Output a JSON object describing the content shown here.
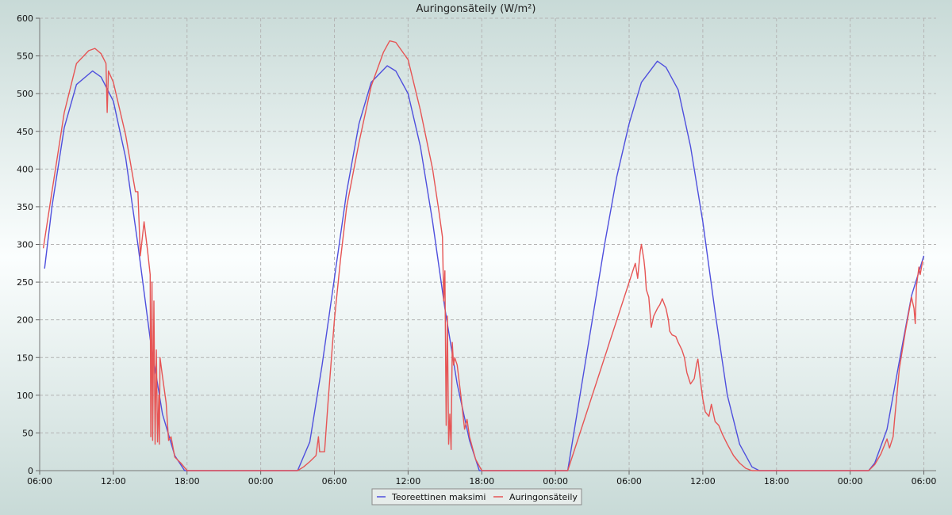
{
  "chart_data": {
    "type": "line",
    "title": "Auringonsäteily (W/m²)",
    "xlabel": "",
    "ylabel": "",
    "ylim": [
      0,
      600
    ],
    "y_ticks": [
      0,
      50,
      100,
      150,
      200,
      250,
      300,
      350,
      400,
      450,
      500,
      550,
      600
    ],
    "x_range_hours": [
      0,
      73
    ],
    "x_ticks": [
      {
        "h": 0,
        "label": "06:00"
      },
      {
        "h": 6,
        "label": "12:00"
      },
      {
        "h": 12,
        "label": "18:00"
      },
      {
        "h": 18,
        "label": "00:00"
      },
      {
        "h": 24,
        "label": "06:00"
      },
      {
        "h": 30,
        "label": "12:00"
      },
      {
        "h": 36,
        "label": "18:00"
      },
      {
        "h": 42,
        "label": "00:00"
      },
      {
        "h": 48,
        "label": "06:00"
      },
      {
        "h": 54,
        "label": "12:00"
      },
      {
        "h": 60,
        "label": "18:00"
      },
      {
        "h": 66,
        "label": "00:00"
      },
      {
        "h": 72,
        "label": "06:00"
      }
    ],
    "grid": true,
    "legend_position": "bottom-center",
    "series": [
      {
        "name": "Teoreettinen maksimi",
        "color": "#4f4fdd",
        "points": [
          [
            0.4,
            268
          ],
          [
            1,
            350
          ],
          [
            2,
            455
          ],
          [
            3,
            512
          ],
          [
            4.3,
            530
          ],
          [
            5,
            522
          ],
          [
            6,
            490
          ],
          [
            7,
            415
          ],
          [
            8,
            300
          ],
          [
            9,
            175
          ],
          [
            10,
            75
          ],
          [
            11,
            20
          ],
          [
            11.8,
            0
          ],
          [
            12.5,
            0
          ],
          [
            20.5,
            0
          ],
          [
            21,
            0
          ],
          [
            22,
            38
          ],
          [
            23,
            140
          ],
          [
            24,
            255
          ],
          [
            25,
            370
          ],
          [
            26,
            460
          ],
          [
            27,
            515
          ],
          [
            28.3,
            537
          ],
          [
            29,
            530
          ],
          [
            30,
            500
          ],
          [
            31,
            430
          ],
          [
            32,
            330
          ],
          [
            33,
            215
          ],
          [
            34,
            115
          ],
          [
            35,
            40
          ],
          [
            35.8,
            0
          ],
          [
            36.5,
            0
          ],
          [
            42,
            0
          ],
          [
            43,
            0
          ],
          [
            44,
            100
          ],
          [
            45,
            200
          ],
          [
            46,
            300
          ],
          [
            47,
            390
          ],
          [
            48,
            460
          ],
          [
            49,
            515
          ],
          [
            50.3,
            543
          ],
          [
            51,
            535
          ],
          [
            52,
            505
          ],
          [
            53,
            430
          ],
          [
            54,
            330
          ],
          [
            55,
            210
          ],
          [
            56,
            100
          ],
          [
            57,
            35
          ],
          [
            58,
            5
          ],
          [
            58.6,
            0
          ],
          [
            59.5,
            0
          ],
          [
            66,
            0
          ],
          [
            67,
            0
          ],
          [
            67.5,
            0
          ],
          [
            68,
            10
          ],
          [
            69,
            55
          ],
          [
            70,
            145
          ],
          [
            71,
            232
          ],
          [
            72,
            285
          ]
        ]
      },
      {
        "name": "Auringonsäteily",
        "color": "#e65555",
        "points": [
          [
            0.3,
            295
          ],
          [
            1,
            370
          ],
          [
            2,
            475
          ],
          [
            3,
            540
          ],
          [
            4,
            557
          ],
          [
            4.5,
            560
          ],
          [
            5,
            553
          ],
          [
            5.4,
            540
          ],
          [
            5.5,
            475
          ],
          [
            5.6,
            530
          ],
          [
            6,
            515
          ],
          [
            7,
            445
          ],
          [
            7.8,
            370
          ],
          [
            8,
            370
          ],
          [
            8.2,
            285
          ],
          [
            8.5,
            330
          ],
          [
            8.8,
            290
          ],
          [
            9,
            260
          ],
          [
            9.05,
            45
          ],
          [
            9.15,
            250
          ],
          [
            9.2,
            40
          ],
          [
            9.3,
            225
          ],
          [
            9.4,
            35
          ],
          [
            9.5,
            160
          ],
          [
            9.6,
            38
          ],
          [
            9.7,
            100
          ],
          [
            9.75,
            35
          ],
          [
            9.8,
            150
          ],
          [
            10,
            125
          ],
          [
            10.3,
            90
          ],
          [
            10.5,
            40
          ],
          [
            10.7,
            45
          ],
          [
            11,
            18
          ],
          [
            11.5,
            10
          ],
          [
            12,
            0
          ],
          [
            12.5,
            0
          ],
          [
            20.5,
            0
          ],
          [
            21,
            0
          ],
          [
            21.5,
            5
          ],
          [
            22,
            12
          ],
          [
            22.5,
            20
          ],
          [
            22.7,
            45
          ],
          [
            22.8,
            25
          ],
          [
            23.2,
            25
          ],
          [
            23.5,
            95
          ],
          [
            24,
            200
          ],
          [
            24.5,
            280
          ],
          [
            25,
            350
          ],
          [
            26,
            435
          ],
          [
            27,
            510
          ],
          [
            28,
            555
          ],
          [
            28.5,
            570
          ],
          [
            29,
            568
          ],
          [
            30,
            545
          ],
          [
            31,
            478
          ],
          [
            32,
            400
          ],
          [
            32.5,
            345
          ],
          [
            32.8,
            310
          ],
          [
            32.9,
            225
          ],
          [
            33.0,
            265
          ],
          [
            33.1,
            60
          ],
          [
            33.2,
            205
          ],
          [
            33.3,
            35
          ],
          [
            33.4,
            75
          ],
          [
            33.5,
            28
          ],
          [
            33.6,
            170
          ],
          [
            33.7,
            140
          ],
          [
            33.8,
            150
          ],
          [
            34,
            140
          ],
          [
            34.3,
            100
          ],
          [
            34.6,
            55
          ],
          [
            34.8,
            68
          ],
          [
            35,
            45
          ],
          [
            35.5,
            15
          ],
          [
            36,
            0
          ],
          [
            36.5,
            0
          ],
          [
            42,
            0
          ],
          [
            42.5,
            0
          ],
          [
            43,
            0
          ],
          [
            48.5,
            275
          ],
          [
            48.7,
            255
          ],
          [
            48.9,
            290
          ],
          [
            49,
            300
          ],
          [
            49.2,
            280
          ],
          [
            49.3,
            265
          ],
          [
            49.4,
            240
          ],
          [
            49.6,
            230
          ],
          [
            49.8,
            190
          ],
          [
            50,
            205
          ],
          [
            50.3,
            215
          ],
          [
            50.5,
            220
          ],
          [
            50.7,
            228
          ],
          [
            51,
            215
          ],
          [
            51.2,
            200
          ],
          [
            51.3,
            185
          ],
          [
            51.5,
            180
          ],
          [
            51.8,
            178
          ],
          [
            52,
            170
          ],
          [
            52.3,
            160
          ],
          [
            52.5,
            150
          ],
          [
            52.7,
            130
          ],
          [
            53,
            115
          ],
          [
            53.3,
            122
          ],
          [
            53.5,
            142
          ],
          [
            53.6,
            148
          ],
          [
            53.8,
            120
          ],
          [
            54,
            95
          ],
          [
            54.2,
            78
          ],
          [
            54.5,
            72
          ],
          [
            54.7,
            88
          ],
          [
            55,
            65
          ],
          [
            55.3,
            60
          ],
          [
            55.6,
            48
          ],
          [
            56,
            35
          ],
          [
            56.5,
            20
          ],
          [
            57,
            10
          ],
          [
            57.5,
            3
          ],
          [
            58,
            0
          ],
          [
            58.5,
            0
          ],
          [
            66,
            0
          ],
          [
            67,
            0
          ],
          [
            67.5,
            0
          ],
          [
            68,
            8
          ],
          [
            68.5,
            22
          ],
          [
            69,
            42
          ],
          [
            69.2,
            30
          ],
          [
            69.5,
            45
          ],
          [
            69.6,
            65
          ],
          [
            70,
            135
          ],
          [
            70.5,
            185
          ],
          [
            71,
            230
          ],
          [
            71.2,
            215
          ],
          [
            71.3,
            195
          ],
          [
            71.4,
            245
          ],
          [
            71.6,
            270
          ],
          [
            71.7,
            260
          ],
          [
            71.9,
            278
          ]
        ]
      }
    ]
  }
}
